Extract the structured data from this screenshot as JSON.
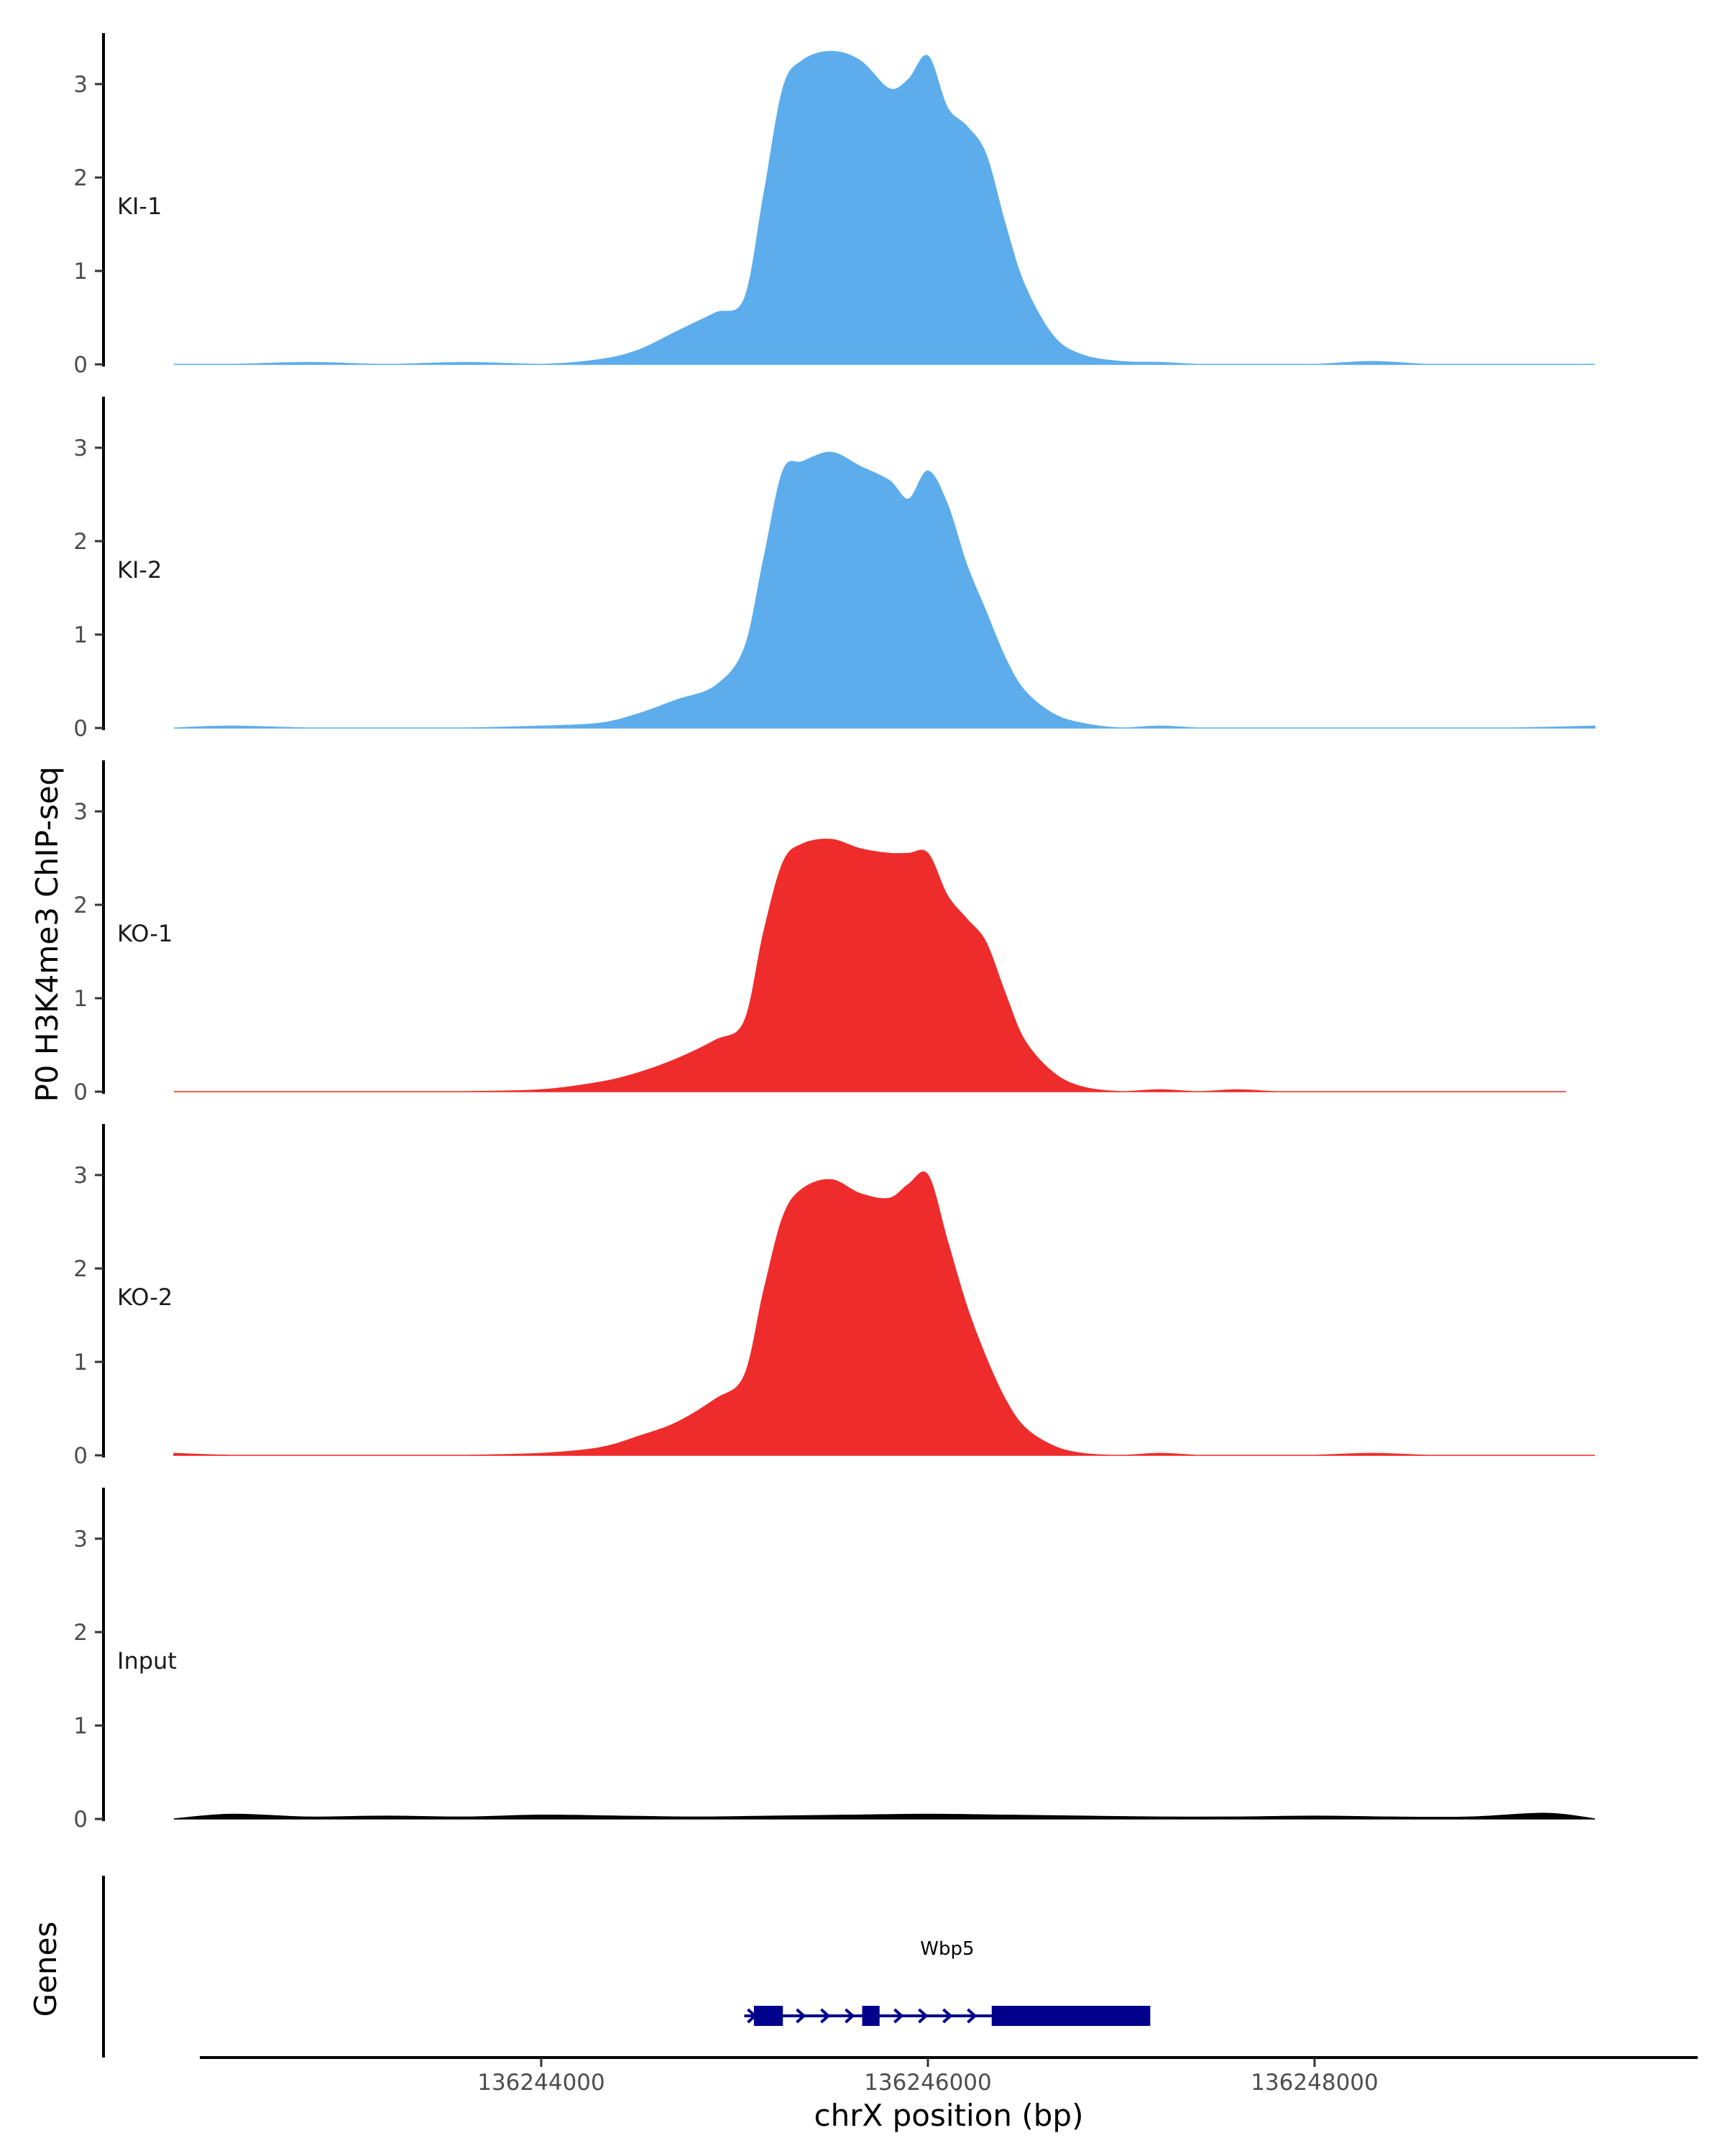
{
  "chart_data": {
    "type": "area",
    "ylabel": "P0 H3K4me3 ChIP-seq",
    "xlabel": "chrX position (bp)",
    "xlim": [
      136241800,
      136249600
    ],
    "ylim": [
      0,
      3.5
    ],
    "y_ticks": [
      0,
      1,
      2,
      3
    ],
    "x_ticks": [
      136244000,
      136246000,
      136248000
    ],
    "x_tick_labels": [
      "136244000",
      "136246000",
      "136248000"
    ],
    "genes_track_label": "Genes",
    "tracks": [
      {
        "name": "KI-1",
        "color": "#5DADEC",
        "x": [
          136242100,
          136242400,
          136242800,
          136243200,
          136243600,
          136244000,
          136244300,
          136244500,
          136244700,
          136244900,
          136245050,
          136245150,
          136245250,
          136245350,
          136245500,
          136245650,
          136245800,
          136245900,
          136246000,
          136246100,
          136246200,
          136246300,
          136246400,
          136246500,
          136246650,
          136246800,
          136247000,
          136247200,
          136247400,
          136247600,
          136247800,
          136248000,
          136248300,
          136248600,
          136249000,
          136249450
        ],
        "values": [
          0.0,
          0.0,
          0.02,
          0.0,
          0.02,
          0.0,
          0.05,
          0.15,
          0.35,
          0.55,
          0.7,
          1.8,
          2.95,
          3.25,
          3.35,
          3.25,
          2.95,
          3.05,
          3.3,
          2.75,
          2.55,
          2.25,
          1.5,
          0.85,
          0.3,
          0.1,
          0.03,
          0.02,
          0.0,
          0.0,
          0.0,
          0.0,
          0.03,
          0.0,
          0.0,
          0.0
        ]
      },
      {
        "name": "KI-2",
        "color": "#5DADEC",
        "x": [
          136242100,
          136242400,
          136242800,
          136243200,
          136243600,
          136244000,
          136244300,
          136244500,
          136244700,
          136244900,
          136245050,
          136245150,
          136245250,
          136245350,
          136245500,
          136245650,
          136245800,
          136245900,
          136246000,
          136246100,
          136246200,
          136246300,
          136246400,
          136246500,
          136246650,
          136246800,
          136247000,
          136247200,
          136247400,
          136247600,
          136247800,
          136248000,
          136248300,
          136248600,
          136249000,
          136249450
        ],
        "values": [
          0.0,
          0.02,
          0.0,
          0.0,
          0.0,
          0.02,
          0.05,
          0.15,
          0.3,
          0.45,
          0.85,
          1.8,
          2.75,
          2.85,
          2.95,
          2.8,
          2.65,
          2.45,
          2.75,
          2.4,
          1.75,
          1.25,
          0.75,
          0.4,
          0.15,
          0.05,
          0.0,
          0.02,
          0.0,
          0.0,
          0.0,
          0.0,
          0.0,
          0.0,
          0.0,
          0.02
        ]
      },
      {
        "name": "KO-1",
        "color": "#EE2C2C",
        "x": [
          136242100,
          136242400,
          136242800,
          136243200,
          136243600,
          136244000,
          136244300,
          136244500,
          136244700,
          136244900,
          136245050,
          136245150,
          136245250,
          136245350,
          136245500,
          136245650,
          136245800,
          136245900,
          136246000,
          136246100,
          136246200,
          136246300,
          136246400,
          136246500,
          136246650,
          136246800,
          136247000,
          136247200,
          136247400,
          136247600,
          136247800,
          136248000,
          136248300,
          136248600,
          136249000,
          136249300
        ],
        "values": [
          0.0,
          0.0,
          0.0,
          0.0,
          0.0,
          0.02,
          0.1,
          0.2,
          0.35,
          0.55,
          0.75,
          1.7,
          2.45,
          2.65,
          2.7,
          2.6,
          2.55,
          2.55,
          2.55,
          2.1,
          1.85,
          1.6,
          1.05,
          0.55,
          0.2,
          0.05,
          0.0,
          0.02,
          0.0,
          0.02,
          0.0,
          0.0,
          0.0,
          0.0,
          0.0,
          0.0
        ]
      },
      {
        "name": "KO-2",
        "color": "#EE2C2C",
        "x": [
          136242100,
          136242400,
          136242800,
          136243200,
          136243600,
          136244000,
          136244300,
          136244500,
          136244700,
          136244900,
          136245050,
          136245150,
          136245250,
          136245350,
          136245500,
          136245650,
          136245800,
          136245900,
          136246000,
          136246100,
          136246200,
          136246300,
          136246400,
          136246500,
          136246650,
          136246800,
          136247000,
          136247200,
          136247400,
          136247600,
          136247800,
          136248000,
          136248300,
          136248600,
          136249000,
          136249450
        ],
        "values": [
          0.02,
          0.0,
          0.0,
          0.0,
          0.0,
          0.02,
          0.08,
          0.2,
          0.35,
          0.6,
          0.85,
          1.75,
          2.55,
          2.85,
          2.95,
          2.8,
          2.75,
          2.9,
          3.0,
          2.3,
          1.6,
          1.05,
          0.6,
          0.3,
          0.1,
          0.02,
          0.0,
          0.02,
          0.0,
          0.0,
          0.0,
          0.0,
          0.02,
          0.0,
          0.0,
          0.0
        ]
      },
      {
        "name": "Input",
        "color": "#000000",
        "x": [
          136242100,
          136242400,
          136242800,
          136243200,
          136243600,
          136244000,
          136244400,
          136244800,
          136245200,
          136245600,
          136246000,
          136246400,
          136246800,
          136247200,
          136247600,
          136248000,
          136248400,
          136248800,
          136249200,
          136249450
        ],
        "values": [
          0.0,
          0.05,
          0.02,
          0.03,
          0.02,
          0.04,
          0.03,
          0.02,
          0.03,
          0.04,
          0.05,
          0.04,
          0.03,
          0.02,
          0.02,
          0.03,
          0.02,
          0.02,
          0.06,
          0.0
        ]
      }
    ],
    "genes": [
      {
        "name": "Wbp5",
        "strand": "+",
        "start": 136245050,
        "end": 136247150,
        "exons": [
          [
            136245100,
            136245250
          ],
          [
            136245660,
            136245750
          ],
          [
            136246330,
            136247150
          ]
        ],
        "color": "#00008B"
      }
    ]
  }
}
